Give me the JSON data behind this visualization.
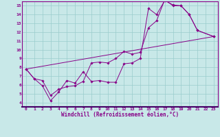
{
  "xlabel": "Windchill (Refroidissement éolien,°C)",
  "xlim": [
    -0.5,
    23.5
  ],
  "ylim": [
    3.5,
    15.5
  ],
  "xticks": [
    0,
    1,
    2,
    3,
    4,
    5,
    6,
    7,
    8,
    9,
    10,
    11,
    12,
    13,
    14,
    15,
    16,
    17,
    18,
    19,
    20,
    21,
    22,
    23
  ],
  "yticks": [
    4,
    5,
    6,
    7,
    8,
    9,
    10,
    11,
    12,
    13,
    14,
    15
  ],
  "line_color": "#880088",
  "background_color": "#c8e8e8",
  "grid_color": "#99cccc",
  "axis_label_color": "#440044",
  "line1_x": [
    0,
    1,
    2,
    3,
    4,
    5,
    6,
    7,
    8,
    9,
    10,
    11,
    12,
    13,
    14,
    15,
    16,
    17,
    18,
    19,
    20,
    21,
    23
  ],
  "line1_y": [
    7.8,
    6.7,
    5.9,
    4.2,
    5.2,
    6.5,
    6.2,
    7.5,
    6.4,
    6.5,
    6.3,
    6.3,
    8.4,
    8.5,
    9.0,
    14.7,
    14.0,
    15.6,
    15.1,
    15.0,
    14.0,
    12.2,
    11.5
  ],
  "line2_x": [
    0,
    1,
    2,
    3,
    4,
    5,
    6,
    7,
    8,
    9,
    10,
    11,
    12,
    13,
    14,
    15,
    16,
    17,
    18,
    19,
    20,
    21,
    23
  ],
  "line2_y": [
    7.8,
    6.7,
    6.5,
    4.8,
    5.5,
    5.8,
    5.9,
    6.4,
    8.5,
    8.6,
    8.5,
    9.0,
    9.8,
    9.5,
    9.7,
    12.5,
    13.3,
    15.7,
    15.0,
    15.0,
    14.0,
    12.2,
    11.5
  ],
  "line3_x": [
    0,
    23
  ],
  "line3_y": [
    7.8,
    11.5
  ]
}
